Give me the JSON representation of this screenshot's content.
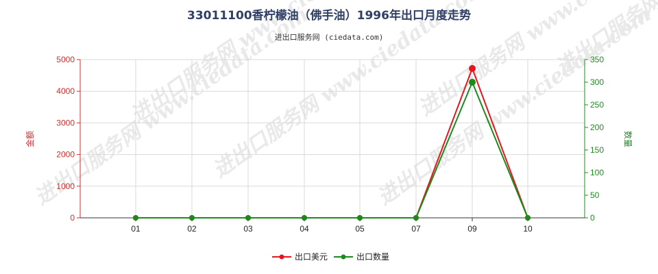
{
  "chart_data": {
    "type": "line",
    "title": "33011100香柠檬油（佛手油）1996年出口月度走势",
    "subtitle": "进出口服务网 (ciedata.com)",
    "categories": [
      "01",
      "02",
      "03",
      "04",
      "05",
      "07",
      "09",
      "10"
    ],
    "y_left": {
      "label": "金额",
      "min": 0,
      "max": 5000,
      "ticks": [
        0,
        1000,
        2000,
        3000,
        4000,
        5000
      ]
    },
    "y_right": {
      "label": "数量",
      "min": 0,
      "max": 350,
      "ticks": [
        0,
        50,
        100,
        150,
        200,
        250,
        300,
        350
      ]
    },
    "series": [
      {
        "name": "出口美元",
        "axis": "left",
        "color": "#e8141c",
        "values": [
          0,
          0,
          0,
          0,
          0,
          0,
          4720,
          0
        ]
      },
      {
        "name": "出口数量",
        "axis": "right",
        "color": "#1a8a1a",
        "values": [
          0,
          0,
          0,
          0,
          0,
          0,
          300,
          0
        ]
      }
    ],
    "grid": true,
    "legend_position": "bottom-center"
  },
  "watermark": "进出口服务网 www.ciedata.com"
}
